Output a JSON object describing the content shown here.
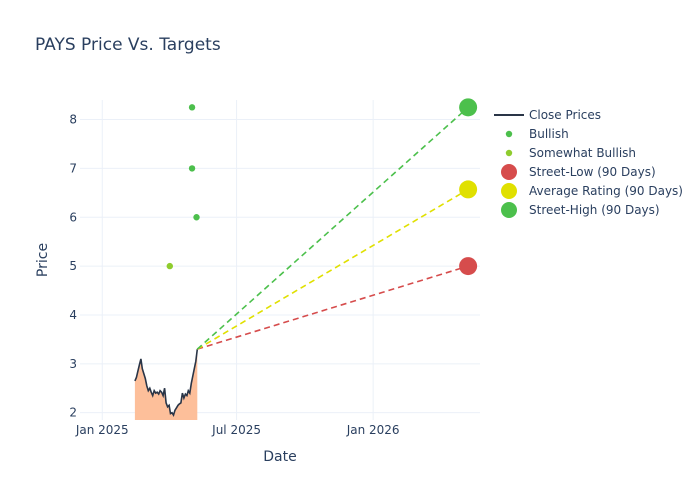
{
  "chart_data": {
    "type": "line",
    "title": "PAYS Price Vs. Targets",
    "xlabel": "Date",
    "ylabel": "Price",
    "xlim": [
      "2024-12-02",
      "2026-05-25"
    ],
    "ylim": [
      1.85,
      8.4
    ],
    "x_ticks": [
      {
        "date": "2025-01-01",
        "label": "Jan 2025"
      },
      {
        "date": "2025-07-01",
        "label": "Jul 2025"
      },
      {
        "date": "2026-01-01",
        "label": "Jan 2026"
      }
    ],
    "y_ticks": [
      2,
      3,
      4,
      5,
      6,
      7,
      8
    ],
    "grid": true,
    "legend_position": "right",
    "colors": {
      "close": "#2a3547",
      "area": "#fdbf9a",
      "bullish": "#4cbf4c",
      "somewhat_bullish": "#8fcc2e",
      "street_low": "#d64c4c",
      "average": "#e0e000",
      "street_high": "#4cc04c"
    },
    "close_prices": {
      "name": "Close Prices",
      "points": [
        [
          "2025-02-14",
          2.65
        ],
        [
          "2025-02-16",
          2.72
        ],
        [
          "2025-02-18",
          2.85
        ],
        [
          "2025-02-20",
          2.98
        ],
        [
          "2025-02-22",
          3.1
        ],
        [
          "2025-02-24",
          2.9
        ],
        [
          "2025-02-26",
          2.8
        ],
        [
          "2025-02-28",
          2.7
        ],
        [
          "2025-03-02",
          2.55
        ],
        [
          "2025-03-04",
          2.45
        ],
        [
          "2025-03-06",
          2.5
        ],
        [
          "2025-03-08",
          2.42
        ],
        [
          "2025-03-10",
          2.35
        ],
        [
          "2025-03-12",
          2.45
        ],
        [
          "2025-03-14",
          2.4
        ],
        [
          "2025-03-16",
          2.42
        ],
        [
          "2025-03-18",
          2.38
        ],
        [
          "2025-03-20",
          2.45
        ],
        [
          "2025-03-22",
          2.42
        ],
        [
          "2025-03-24",
          2.35
        ],
        [
          "2025-03-26",
          2.5
        ],
        [
          "2025-03-28",
          2.2
        ],
        [
          "2025-03-30",
          2.12
        ],
        [
          "2025-04-01",
          2.15
        ],
        [
          "2025-04-03",
          1.98
        ],
        [
          "2025-04-05",
          2.0
        ],
        [
          "2025-04-07",
          1.95
        ],
        [
          "2025-04-09",
          2.05
        ],
        [
          "2025-04-11",
          2.1
        ],
        [
          "2025-04-13",
          2.15
        ],
        [
          "2025-04-15",
          2.18
        ],
        [
          "2025-04-17",
          2.2
        ],
        [
          "2025-04-19",
          2.4
        ],
        [
          "2025-04-21",
          2.3
        ],
        [
          "2025-04-23",
          2.38
        ],
        [
          "2025-04-25",
          2.35
        ],
        [
          "2025-04-27",
          2.45
        ],
        [
          "2025-04-29",
          2.4
        ],
        [
          "2025-05-01",
          2.6
        ],
        [
          "2025-05-03",
          2.75
        ],
        [
          "2025-05-05",
          2.9
        ],
        [
          "2025-05-07",
          3.05
        ],
        [
          "2025-05-09",
          3.3
        ]
      ]
    },
    "bullish": {
      "name": "Bullish",
      "points": [
        [
          "2025-05-02",
          8.25
        ],
        [
          "2025-05-02",
          7.0
        ],
        [
          "2025-05-08",
          6.0
        ]
      ]
    },
    "somewhat_bullish": {
      "name": "Somewhat Bullish",
      "points": [
        [
          "2025-04-02",
          5.0
        ]
      ]
    },
    "targets": {
      "start": [
        "2025-05-09",
        3.3
      ],
      "end_date": "2026-05-09",
      "series": [
        {
          "key": "street_low",
          "name": "Street-Low (90 Days)",
          "value": 5.0
        },
        {
          "key": "average",
          "name": "Average Rating (90 Days)",
          "value": 6.57
        },
        {
          "key": "street_high",
          "name": "Street-High (90 Days)",
          "value": 8.25
        }
      ]
    }
  }
}
